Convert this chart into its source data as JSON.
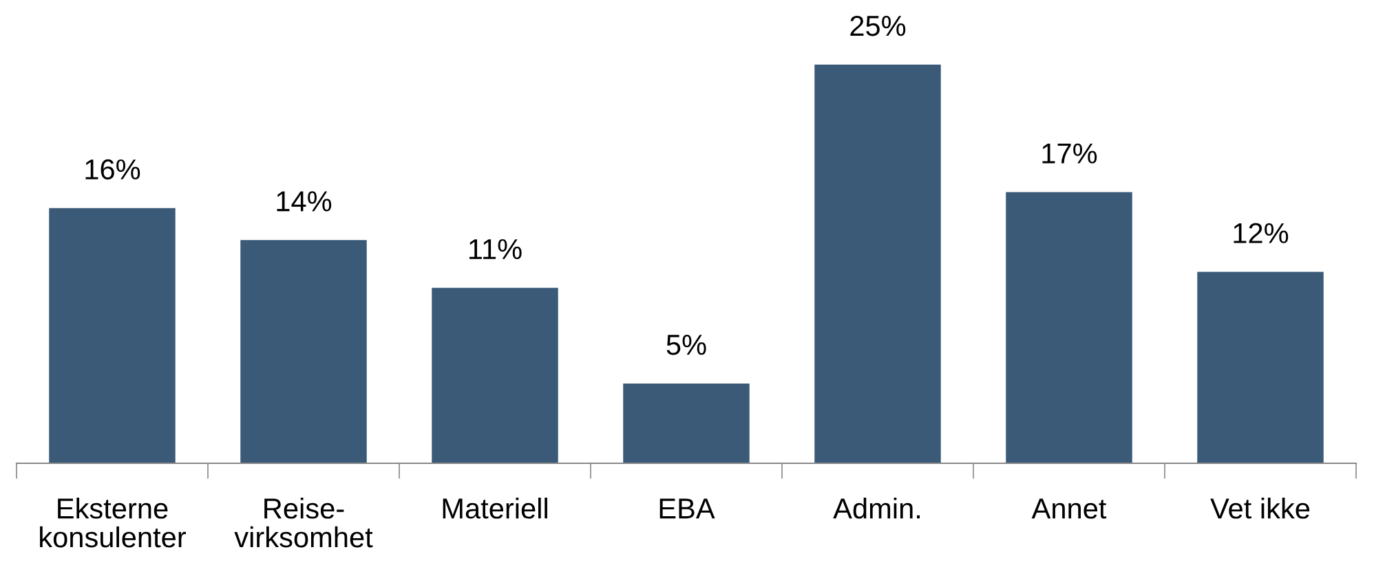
{
  "chart_data": {
    "type": "bar",
    "categories": [
      "Eksterne\nkonsulenter",
      "Reise-\nvirksomhet",
      "Materiell",
      "EBA",
      "Admin.",
      "Annet",
      "Vet ikke"
    ],
    "values": [
      16,
      14,
      11,
      5,
      25,
      17,
      12
    ],
    "value_labels": [
      "16%",
      "14%",
      "11%",
      "5%",
      "25%",
      "17%",
      "12%"
    ],
    "color": "#3a5a78"
  }
}
